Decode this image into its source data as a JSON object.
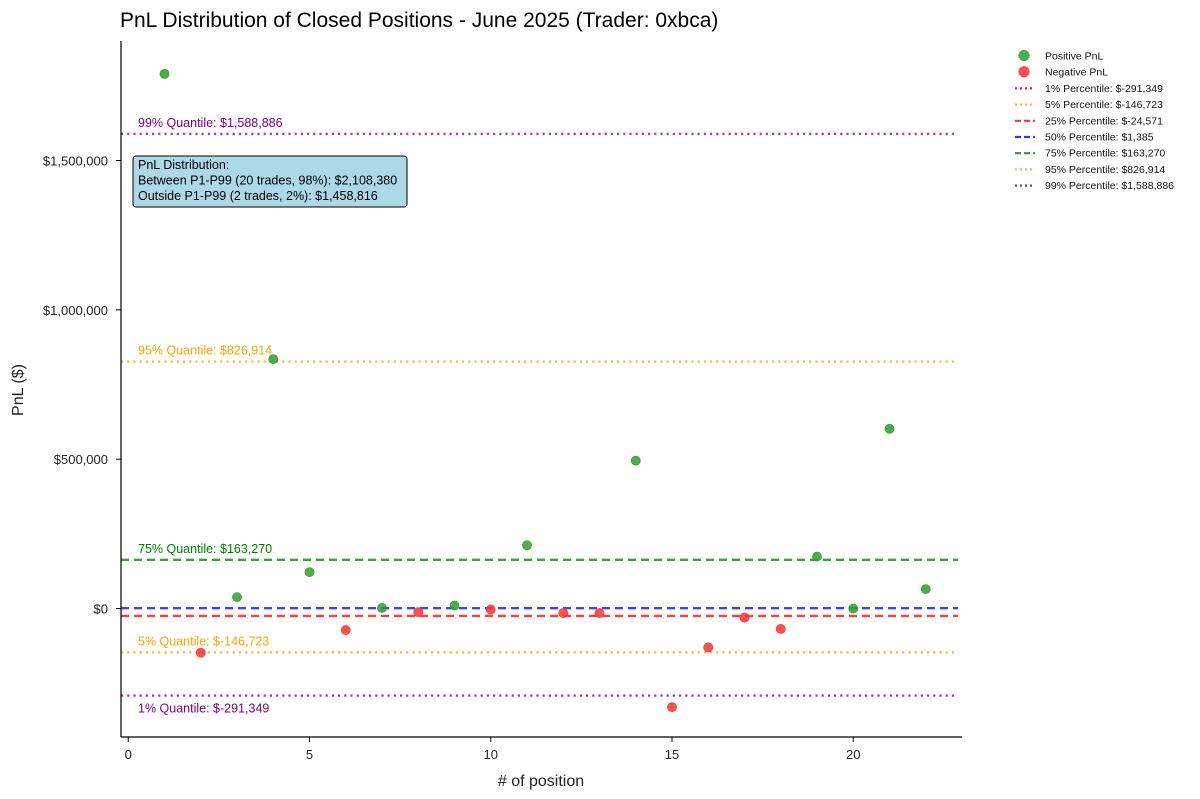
{
  "chart_data": {
    "type": "scatter",
    "title": "PnL Distribution of Closed Positions - June 2025 (Trader: 0xbca)",
    "xlabel": "# of position",
    "ylabel": "PnL ($)",
    "xlim": [
      -0.2,
      23
    ],
    "ylim": [
      -430000,
      1900000
    ],
    "x_ticks": [
      0,
      5,
      10,
      15,
      20
    ],
    "x_tick_labels": [
      "0",
      "5",
      "10",
      "15",
      "20"
    ],
    "y_ticks": [
      0,
      500000,
      1000000,
      1500000
    ],
    "y_tick_labels": [
      "$0",
      "$500,000",
      "$1,000,000",
      "$1,500,000"
    ],
    "grid": false,
    "legend_position": "outside top-right",
    "series": [
      {
        "name": "Positive PnL",
        "color": "#2ca02c",
        "points": [
          [
            1,
            1790000
          ],
          [
            3,
            38000
          ],
          [
            4,
            835000
          ],
          [
            5,
            122000
          ],
          [
            7,
            2000
          ],
          [
            9,
            10000
          ],
          [
            11,
            212000
          ],
          [
            14,
            495000
          ],
          [
            19,
            174000
          ],
          [
            20,
            0
          ],
          [
            21,
            602000
          ],
          [
            22,
            65000
          ]
        ]
      },
      {
        "name": "Negative PnL",
        "color": "#ff3333",
        "points": [
          [
            2,
            -148000
          ],
          [
            6,
            -72000
          ],
          [
            8,
            -12000
          ],
          [
            10,
            -3000
          ],
          [
            12,
            -15000
          ],
          [
            13,
            -15000
          ],
          [
            15,
            -330000
          ],
          [
            16,
            -130000
          ],
          [
            17,
            -30000
          ],
          [
            18,
            -68000
          ]
        ]
      }
    ],
    "reference_lines": [
      {
        "legend": "1% Percentile: $-291,349",
        "label": "1% Quantile: $-291,349",
        "value": -291349,
        "color": "#800080",
        "style": "dotted",
        "label_position": "below"
      },
      {
        "legend": "5% Percentile: $-146,723",
        "label": "5% Quantile: $-146,723",
        "value": -146723,
        "color": "#ffa500",
        "style": "dotted",
        "label_position": "above"
      },
      {
        "legend": "25% Percentile: $-24,571",
        "label": "",
        "value": -24571,
        "color": "#ff0000",
        "style": "dashed",
        "label_position": "none"
      },
      {
        "legend": "50% Percentile: $1,385",
        "label": "",
        "value": 1385,
        "color": "#0000ff",
        "style": "dashed",
        "label_position": "none"
      },
      {
        "legend": "75% Percentile: $163,270",
        "label": "75% Quantile: $163,270",
        "value": 163270,
        "color": "#008000",
        "style": "dashed",
        "label_position": "above"
      },
      {
        "legend": "95% Percentile: $826,914",
        "label": "95% Quantile: $826,914",
        "value": 826914,
        "color": "#ffa500",
        "style": "dotted",
        "label_position": "above"
      },
      {
        "legend": "99% Percentile: $1,588,886",
        "label": "99% Quantile: $1,588,886",
        "value": 1588886,
        "color": "#800080",
        "style": "dotted",
        "label_position": "above"
      }
    ],
    "annotation": {
      "lines": [
        "PnL Distribution:",
        "Between P1-P99 (20 trades, 98%): $2,108,380",
        "Outside P1-P99 (2 trades, 2%): $1,458,816"
      ],
      "background": "#add8e6"
    }
  }
}
